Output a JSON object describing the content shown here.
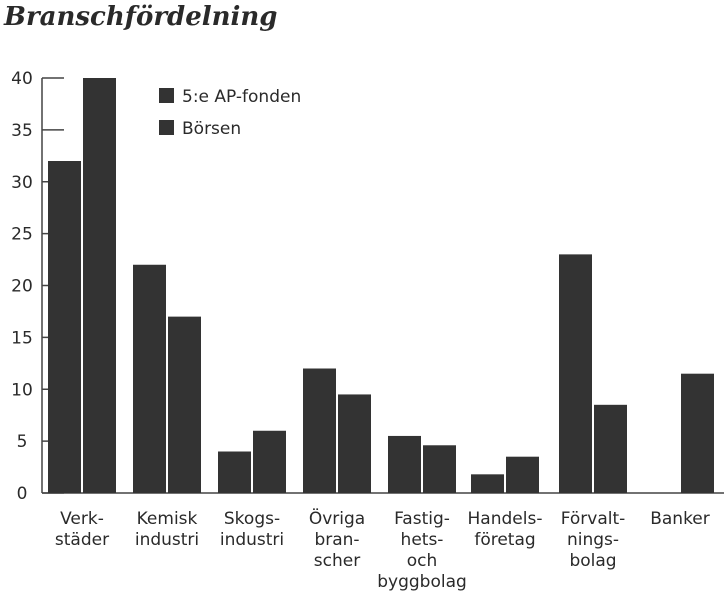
{
  "chart_data": {
    "type": "bar",
    "title": "Branschfördelning",
    "xlabel": "",
    "ylabel": "",
    "ylim": [
      0,
      40
    ],
    "yticks": [
      0,
      5,
      10,
      15,
      20,
      25,
      30,
      35,
      40
    ],
    "grid": false,
    "legend_position": "top-left",
    "categories": [
      [
        "Verk-",
        "städer"
      ],
      [
        "Kemisk",
        "industri"
      ],
      [
        "Skogs-",
        "industri"
      ],
      [
        "Övriga",
        "bran-",
        "scher"
      ],
      [
        "Fastig-",
        "hets-",
        "och",
        "byggbolag"
      ],
      [
        "Handels-",
        "företag"
      ],
      [
        "Förvalt-",
        "nings-",
        "bolag"
      ],
      [
        "Banker"
      ]
    ],
    "series": [
      {
        "name": "5:e AP-fonden",
        "color": "#333333",
        "values": [
          32,
          22,
          4,
          12,
          5.5,
          1.8,
          23,
          0
        ]
      },
      {
        "name": "Börsen",
        "color": "#333333",
        "values": [
          40,
          17,
          6,
          9.5,
          4.6,
          3.5,
          8.5,
          11.5
        ]
      }
    ]
  }
}
